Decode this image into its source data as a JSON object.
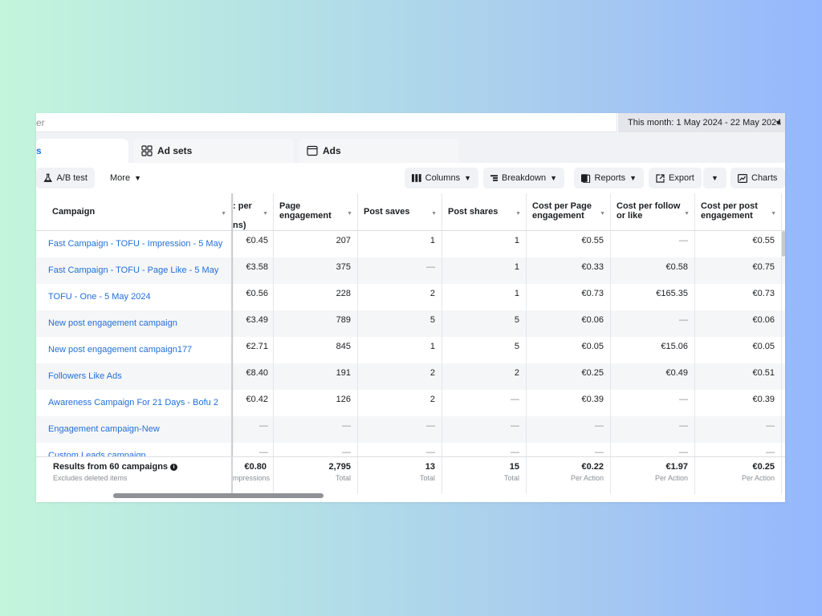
{
  "search": {
    "text": "er"
  },
  "date_range": {
    "label": "This month: 1 May 2024 - 22 May 2024"
  },
  "tabs": [
    {
      "label": "s",
      "active": true
    },
    {
      "label": "Ad sets",
      "icon": "ad-sets-grid-icon"
    },
    {
      "label": "Ads",
      "icon": "ads-window-icon"
    }
  ],
  "toolbar": {
    "ab_test": "A/B test",
    "more": "More",
    "columns": "Columns",
    "breakdown": "Breakdown",
    "reports": "Reports",
    "export": "Export",
    "charts": "Charts"
  },
  "table": {
    "headers": {
      "campaign": "Campaign",
      "cost_per_partial_1": ": per",
      "cost_per_partial_2": "ns)",
      "page_engagement": "Page engagement",
      "post_saves": "Post saves",
      "post_shares": "Post shares",
      "cost_per_page_engagement": "Cost per Page engagement",
      "cost_per_follow": "Cost per follow or like",
      "cost_per_post_engagement": "Cost per post engagement"
    },
    "rows": [
      {
        "campaign": "Fast Campaign - TOFU - Impression - 5 May",
        "cost": "€0.45",
        "page_eng": "207",
        "saves": "1",
        "shares": "1",
        "cppe": "€0.55",
        "cpf": "—",
        "cppost": "€0.55"
      },
      {
        "campaign": "Fast Campaign - TOFU - Page Like - 5 May",
        "cost": "€3.58",
        "page_eng": "375",
        "saves": "—",
        "shares": "1",
        "cppe": "€0.33",
        "cpf": "€0.58",
        "cppost": "€0.75"
      },
      {
        "campaign": "TOFU - One - 5 May 2024",
        "cost": "€0.56",
        "page_eng": "228",
        "saves": "2",
        "shares": "1",
        "cppe": "€0.73",
        "cpf": "€165.35",
        "cppost": "€0.73"
      },
      {
        "campaign": "New post engagement campaign",
        "cost": "€3.49",
        "page_eng": "789",
        "saves": "5",
        "shares": "5",
        "cppe": "€0.06",
        "cpf": "—",
        "cppost": "€0.06"
      },
      {
        "campaign": "New post engagement campaign177",
        "cost": "€2.71",
        "page_eng": "845",
        "saves": "1",
        "shares": "5",
        "cppe": "€0.05",
        "cpf": "€15.06",
        "cppost": "€0.05"
      },
      {
        "campaign": "Followers Like Ads",
        "cost": "€8.40",
        "page_eng": "191",
        "saves": "2",
        "shares": "2",
        "cppe": "€0.25",
        "cpf": "€0.49",
        "cppost": "€0.51"
      },
      {
        "campaign": "Awareness Campaign For 21 Days - Bofu 2",
        "cost": "€0.42",
        "page_eng": "126",
        "saves": "2",
        "shares": "—",
        "cppe": "€0.39",
        "cpf": "—",
        "cppost": "€0.39"
      },
      {
        "campaign": "Engagement campaign-New",
        "cost": "—",
        "page_eng": "—",
        "saves": "—",
        "shares": "—",
        "cppe": "—",
        "cpf": "—",
        "cppost": "—"
      },
      {
        "campaign": "Custom Leads campaign",
        "cost": "—",
        "page_eng": "—",
        "saves": "—",
        "shares": "—",
        "cppe": "—",
        "cpf": "—",
        "cppost": "—"
      }
    ],
    "footer": {
      "title": "Results from 60 campaigns",
      "subtitle": "Excludes deleted items",
      "cost": "€0.80",
      "cost_sub": "mpressions",
      "page_eng": "2,795",
      "page_eng_sub": "Total",
      "saves": "13",
      "saves_sub": "Total",
      "shares": "15",
      "shares_sub": "Total",
      "cppe": "€0.22",
      "cppe_sub": "Per Action",
      "cpf": "€1.97",
      "cpf_sub": "Per Action",
      "cppost": "€0.25",
      "cppost_sub": "Per Action"
    }
  },
  "colors": {
    "link": "#216fdb",
    "accent": "#1877f2"
  }
}
